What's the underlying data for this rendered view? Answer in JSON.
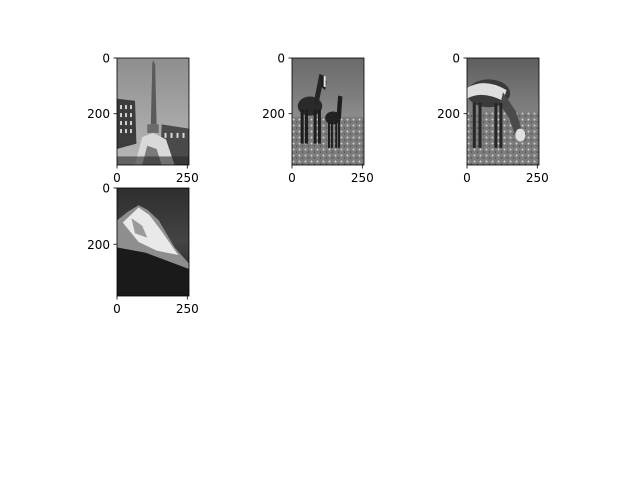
{
  "chart_data": [
    {
      "type": "image",
      "image_subject": "grayscale photo of an obelisk fountain in a city square with buildings",
      "colormap": "gray",
      "x_ticks": [
        0,
        250
      ],
      "y_ticks": [
        0,
        200
      ],
      "xlim": [
        0,
        256
      ],
      "ylim": [
        384,
        0
      ]
    },
    {
      "type": "image",
      "image_subject": "grayscale photo of a mare and a foal standing in a grassy field",
      "colormap": "gray",
      "x_ticks": [
        0,
        250
      ],
      "y_ticks": [
        0,
        200
      ],
      "xlim": [
        0,
        256
      ],
      "ylim": [
        384,
        0
      ]
    },
    {
      "type": "image",
      "image_subject": "grayscale photo of a horse wearing a blanket grazing in a field",
      "colormap": "gray",
      "x_ticks": [
        0,
        250
      ],
      "y_ticks": [
        0,
        200
      ],
      "xlim": [
        0,
        256
      ],
      "ylim": [
        384,
        0
      ]
    },
    {
      "type": "image",
      "image_subject": "grayscale photo of a rugged snowy mountain peak under a dark sky",
      "colormap": "gray",
      "x_ticks": [
        0,
        250
      ],
      "y_ticks": [
        0,
        200
      ],
      "xlim": [
        0,
        256
      ],
      "ylim": [
        384,
        0
      ]
    }
  ],
  "colors": {
    "axis": "#000000",
    "background": "#ffffff"
  }
}
